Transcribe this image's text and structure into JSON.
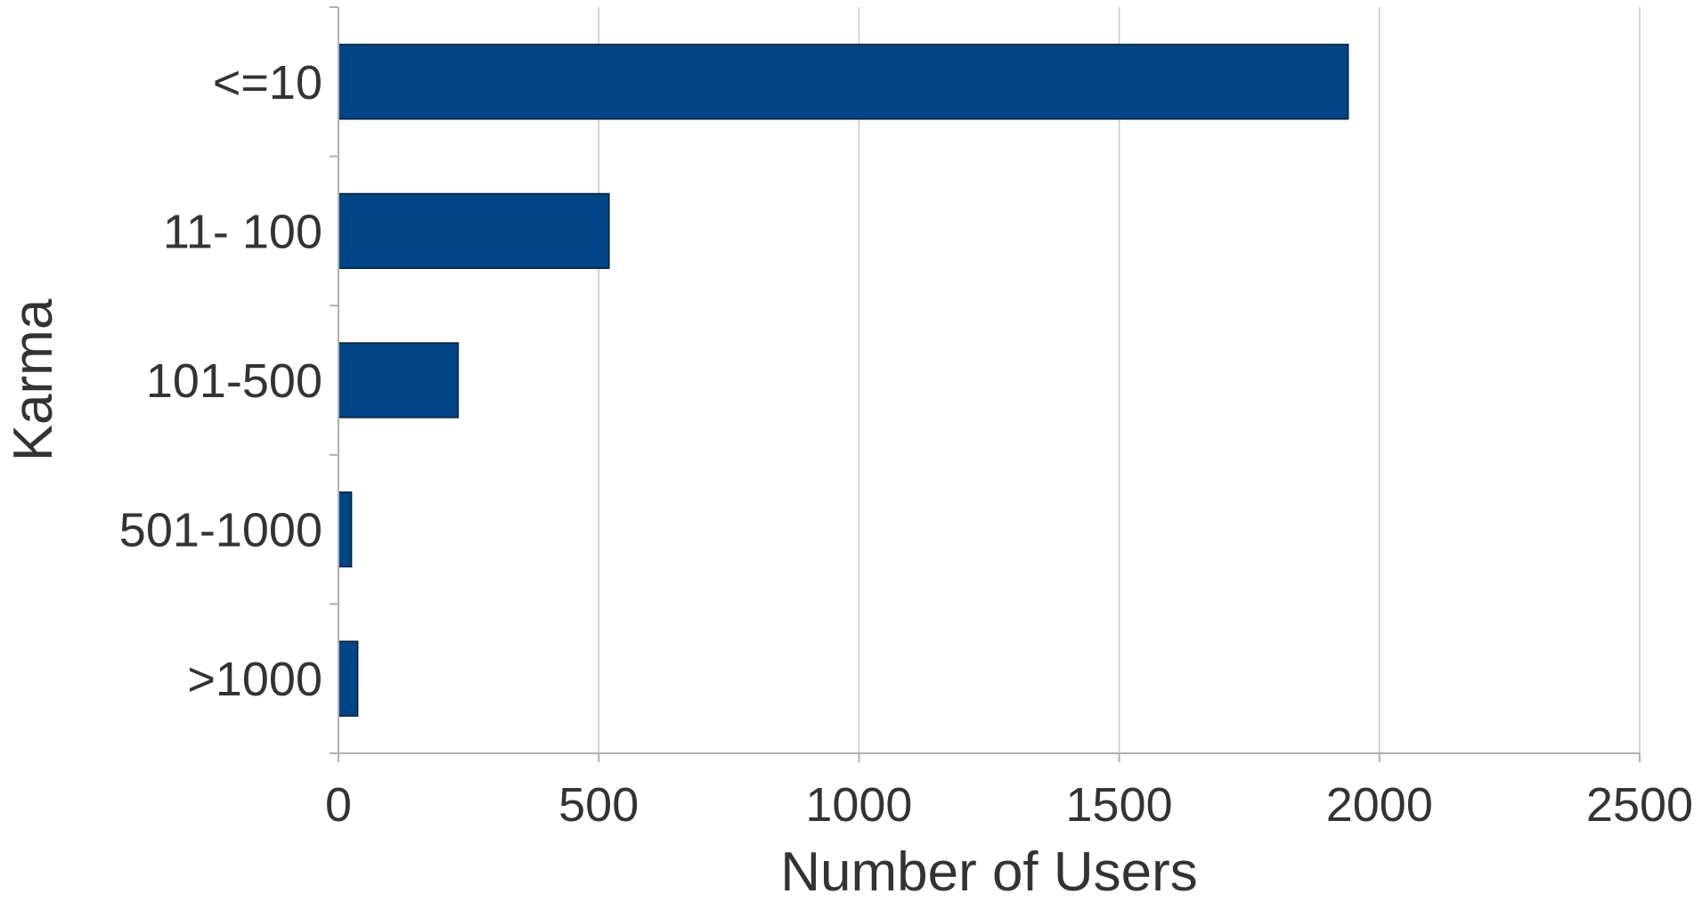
{
  "chart_data": {
    "type": "bar",
    "orientation": "horizontal",
    "categories": [
      "<=10",
      "11- 100",
      "101-500",
      "501-1000",
      ">1000"
    ],
    "values": [
      1940,
      520,
      230,
      25,
      37
    ],
    "xlabel": "Number of Users",
    "ylabel": "Karma",
    "xlim": [
      0,
      2500
    ],
    "xticks": [
      0,
      500,
      1000,
      1500,
      2000,
      2500
    ],
    "grid": true,
    "legend": "none",
    "bar_color": "#004586"
  }
}
